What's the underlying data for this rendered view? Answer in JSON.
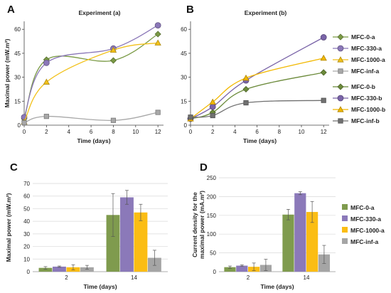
{
  "chart_data": [
    {
      "panel": "A",
      "type": "line",
      "title": "Experiment (a)",
      "xlabel": "Time (days)",
      "ylabel": "Maximal power (mW.m²)",
      "xlim": [
        0,
        12.5
      ],
      "ylim": [
        0,
        65
      ],
      "xticks": [
        0,
        2,
        4,
        6,
        8,
        10,
        12
      ],
      "yticks": [
        0,
        15,
        30,
        45,
        60
      ],
      "series": [
        {
          "name": "MFC-0-a",
          "color": "#7a9a45",
          "marker": "diamond",
          "x": [
            0,
            2,
            8,
            12
          ],
          "y": [
            4,
            41,
            40.5,
            57
          ]
        },
        {
          "name": "MFC-330-a",
          "color": "#8b78b8",
          "marker": "circle",
          "x": [
            0,
            2,
            8,
            12
          ],
          "y": [
            5,
            39,
            48,
            62.5
          ]
        },
        {
          "name": "MFC-1000-a",
          "color": "#f2c11a",
          "marker": "triangle",
          "x": [
            0,
            2,
            8,
            12
          ],
          "y": [
            2,
            27,
            47,
            51.5
          ]
        },
        {
          "name": "MFC-inf-a",
          "color": "#a8a8a8",
          "marker": "square",
          "x": [
            0,
            2,
            8,
            12
          ],
          "y": [
            1.5,
            5.5,
            3,
            8
          ]
        }
      ]
    },
    {
      "panel": "B",
      "type": "line",
      "title": "Experiment (b)",
      "xlabel": "Time (days)",
      "ylabel": "",
      "xlim": [
        0,
        12.5
      ],
      "ylim": [
        0,
        65
      ],
      "xticks": [
        0,
        2,
        4,
        6,
        8,
        10,
        12
      ],
      "yticks": [
        0,
        15,
        30,
        45,
        60
      ],
      "series": [
        {
          "name": "MFC-0-b",
          "color": "#6b8a3a",
          "marker": "diamond",
          "x": [
            0,
            2,
            5,
            12
          ],
          "y": [
            4,
            8,
            22.5,
            33
          ]
        },
        {
          "name": "MFC-330-b",
          "color": "#7a64a8",
          "marker": "circle",
          "x": [
            0,
            2,
            5,
            12
          ],
          "y": [
            4,
            11.5,
            28,
            55
          ]
        },
        {
          "name": "MFC-1000-b",
          "color": "#f2b800",
          "marker": "triangle",
          "x": [
            0,
            2,
            5,
            12
          ],
          "y": [
            4,
            14.5,
            29.5,
            42
          ]
        },
        {
          "name": "MFC-inf-b",
          "color": "#707070",
          "marker": "square",
          "x": [
            0,
            2,
            5,
            12
          ],
          "y": [
            5,
            6,
            14,
            15.5
          ]
        }
      ]
    },
    {
      "panel": "C",
      "type": "bar",
      "title": "",
      "xlabel": "Time (days)",
      "ylabel": "Maximal power (mW.m²)",
      "categories": [
        "2",
        "14"
      ],
      "ylim": [
        0,
        70
      ],
      "yticks": [
        0,
        10,
        20,
        30,
        40,
        50,
        60,
        70
      ],
      "series": [
        {
          "name": "MFC-0-a",
          "color": "#7f9b4e",
          "values": [
            3,
            45
          ],
          "errors": [
            1,
            17
          ]
        },
        {
          "name": "MFC-330-a",
          "color": "#8b79b9",
          "values": [
            4,
            59
          ],
          "errors": [
            0.5,
            5.5
          ]
        },
        {
          "name": "MFC-1000-a",
          "color": "#fbbd14",
          "values": [
            3.5,
            47
          ],
          "errors": [
            2,
            6.5
          ]
        },
        {
          "name": "MFC-inf-a",
          "color": "#a5a5a5",
          "values": [
            3.5,
            11
          ],
          "errors": [
            1.5,
            6
          ]
        }
      ]
    },
    {
      "panel": "D",
      "type": "bar",
      "title": "",
      "xlabel": "Time (days)",
      "ylabel": "Current density  for the maximal power (mA.m²)",
      "ylabel_lines": [
        "Current density  for the",
        "maximal power (mA.m²)"
      ],
      "categories": [
        "2",
        "14"
      ],
      "ylim": [
        0,
        250
      ],
      "yticks": [
        0,
        50,
        100,
        150,
        200,
        250
      ],
      "series": [
        {
          "name": "MFC-0-a",
          "color": "#7f9b4e",
          "values": [
            12,
            152
          ],
          "errors": [
            3,
            14
          ]
        },
        {
          "name": "MFC-330-a",
          "color": "#8b79b9",
          "values": [
            16,
            209
          ],
          "errors": [
            2,
            4
          ]
        },
        {
          "name": "MFC-1000-a",
          "color": "#fbbd14",
          "values": [
            13,
            159
          ],
          "errors": [
            10,
            28
          ]
        },
        {
          "name": "MFC-inf-a",
          "color": "#a5a5a5",
          "values": [
            18,
            46
          ],
          "errors": [
            15,
            24
          ]
        }
      ]
    }
  ]
}
